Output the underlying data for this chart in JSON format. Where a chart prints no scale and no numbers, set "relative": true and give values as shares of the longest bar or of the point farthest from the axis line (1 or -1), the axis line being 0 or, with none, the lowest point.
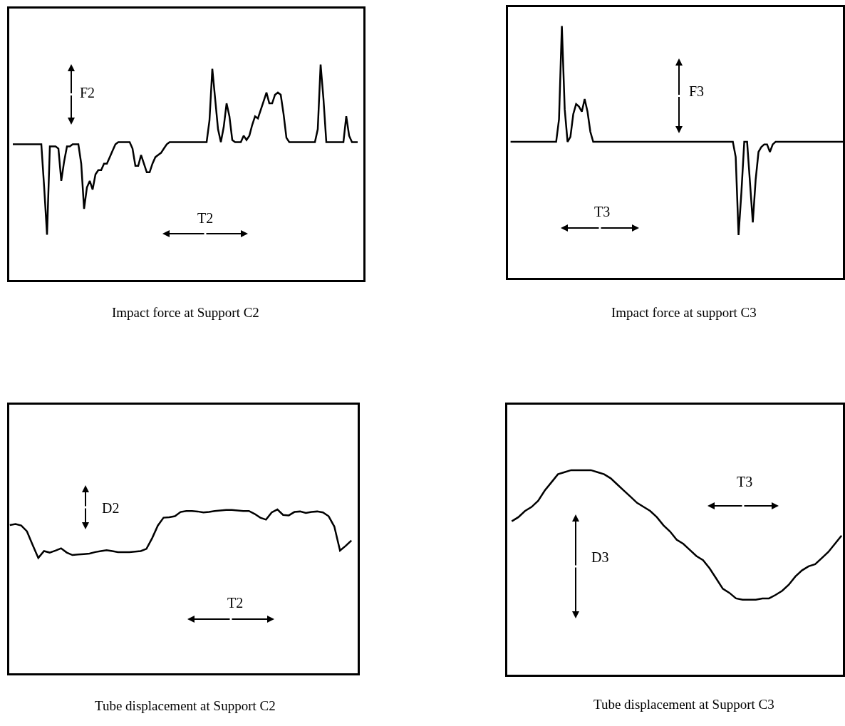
{
  "chart_data": [
    {
      "type": "line",
      "relative": true,
      "title": "Impact force at Support C2",
      "annotations": [
        "F2",
        "T2"
      ],
      "color": "#000000",
      "categories": [
        null,
        null,
        null,
        null,
        null,
        null,
        null,
        null,
        null,
        null,
        null,
        null,
        null,
        null,
        null,
        null,
        null,
        null,
        null,
        null,
        null,
        null,
        null,
        null,
        null,
        null,
        null,
        null,
        null,
        null,
        null,
        null,
        null,
        null,
        null,
        null,
        null,
        null,
        null,
        null,
        null,
        null,
        null,
        null,
        null,
        null,
        null,
        null,
        null,
        null,
        null,
        null,
        null,
        null,
        null,
        null,
        null,
        null,
        null,
        null,
        null,
        null,
        null,
        null,
        null,
        null,
        null,
        null,
        null,
        null,
        null,
        null,
        null,
        null,
        null,
        null,
        null,
        null,
        null,
        null,
        null,
        null,
        null,
        null,
        null,
        null,
        null,
        null,
        null,
        null,
        null,
        null,
        null,
        null,
        null,
        null,
        null,
        null,
        null,
        null,
        null,
        null,
        null,
        null,
        null,
        null,
        null,
        null,
        null,
        null,
        null,
        null,
        null,
        null,
        null,
        null,
        null,
        null,
        null,
        null,
        null,
        null
      ],
      "values": [
        0.63,
        0.63,
        0.63,
        0.63,
        0.63,
        0.63,
        0.63,
        0.63,
        0.63,
        0.63,
        0.63,
        0.43,
        0.21,
        0.62,
        0.62,
        0.62,
        0.61,
        0.46,
        0.55,
        0.62,
        0.62,
        0.63,
        0.63,
        0.63,
        0.54,
        0.33,
        0.43,
        0.46,
        0.42,
        0.49,
        0.51,
        0.51,
        0.54,
        0.54,
        0.57,
        0.6,
        0.63,
        0.64,
        0.64,
        0.64,
        0.64,
        0.64,
        0.61,
        0.53,
        0.53,
        0.58,
        0.54,
        0.5,
        0.5,
        0.54,
        0.57,
        0.58,
        0.59,
        0.61,
        0.63,
        0.64,
        0.64,
        0.64,
        0.64,
        0.64,
        0.64,
        0.64,
        0.64,
        0.64,
        0.64,
        0.64,
        0.64,
        0.64,
        0.64,
        0.74,
        0.98,
        0.84,
        0.7,
        0.64,
        0.71,
        0.82,
        0.76,
        0.65,
        0.64,
        0.64,
        0.64,
        0.67,
        0.65,
        0.67,
        0.72,
        0.76,
        0.75,
        0.79,
        0.83,
        0.87,
        0.82,
        0.82,
        0.86,
        0.87,
        0.86,
        0.77,
        0.66,
        0.64,
        0.64,
        0.64,
        0.64,
        0.64,
        0.64,
        0.64,
        0.64,
        0.64,
        0.64,
        0.7,
        1.0,
        0.84,
        0.64,
        0.64,
        0.64,
        0.64,
        0.64,
        0.64,
        0.64,
        0.76,
        0.67,
        0.64,
        0.64,
        0.64
      ]
    },
    {
      "type": "line",
      "relative": true,
      "title": "Impact force at support C3",
      "annotations": [
        "F3",
        "T3"
      ],
      "color": "#000000",
      "categories": [
        null,
        null,
        null,
        null,
        null,
        null,
        null,
        null,
        null,
        null,
        null,
        null,
        null,
        null,
        null,
        null,
        null,
        null,
        null,
        null,
        null,
        null,
        null,
        null,
        null,
        null,
        null,
        null,
        null,
        null,
        null,
        null,
        null,
        null,
        null,
        null,
        null,
        null,
        null,
        null,
        null,
        null,
        null,
        null,
        null,
        null,
        null,
        null,
        null,
        null,
        null,
        null,
        null,
        null,
        null,
        null,
        null,
        null,
        null,
        null,
        null,
        null,
        null,
        null,
        null,
        null,
        null,
        null,
        null,
        null,
        null,
        null,
        null,
        null,
        null,
        null,
        null,
        null,
        null,
        null,
        null,
        null,
        null,
        null,
        null,
        null,
        null,
        null,
        null,
        null,
        null,
        null,
        null,
        null,
        null,
        null,
        null,
        null,
        null,
        null,
        null,
        null,
        null,
        null,
        null,
        null,
        null,
        null,
        null,
        null,
        null,
        null,
        null,
        null,
        null,
        null,
        null,
        null
      ],
      "values": [
        0.54,
        0.54,
        0.54,
        0.54,
        0.54,
        0.54,
        0.54,
        0.54,
        0.54,
        0.54,
        0.54,
        0.54,
        0.54,
        0.54,
        0.54,
        0.54,
        0.54,
        0.63,
        1.0,
        0.67,
        0.54,
        0.56,
        0.65,
        0.69,
        0.68,
        0.66,
        0.71,
        0.66,
        0.58,
        0.54,
        0.54,
        0.54,
        0.54,
        0.54,
        0.54,
        0.54,
        0.54,
        0.54,
        0.54,
        0.54,
        0.54,
        0.54,
        0.54,
        0.54,
        0.54,
        0.54,
        0.54,
        0.54,
        0.54,
        0.54,
        0.54,
        0.54,
        0.54,
        0.54,
        0.54,
        0.54,
        0.54,
        0.54,
        0.54,
        0.54,
        0.54,
        0.54,
        0.54,
        0.54,
        0.54,
        0.54,
        0.54,
        0.54,
        0.54,
        0.54,
        0.54,
        0.54,
        0.54,
        0.54,
        0.54,
        0.54,
        0.54,
        0.54,
        0.54,
        0.48,
        0.17,
        0.34,
        0.54,
        0.54,
        0.38,
        0.22,
        0.39,
        0.5,
        0.52,
        0.53,
        0.53,
        0.5,
        0.53,
        0.54,
        0.54,
        0.54,
        0.54,
        0.54,
        0.54,
        0.54,
        0.54,
        0.54,
        0.54,
        0.54,
        0.54,
        0.54,
        0.54,
        0.54,
        0.54,
        0.54,
        0.54,
        0.54,
        0.54,
        0.54,
        0.54,
        0.54,
        0.54,
        0.54
      ]
    },
    {
      "type": "line",
      "relative": true,
      "title": "Tube displacement at Support C2",
      "annotations": [
        "D2",
        "T2"
      ],
      "color": "#000000",
      "categories": [
        null,
        null,
        null,
        null,
        null,
        null,
        null,
        null,
        null,
        null,
        null,
        null,
        null,
        null,
        null,
        null,
        null,
        null,
        null,
        null,
        null,
        null,
        null,
        null,
        null,
        null,
        null,
        null,
        null,
        null,
        null,
        null,
        null,
        null,
        null,
        null,
        null,
        null,
        null,
        null,
        null,
        null,
        null,
        null,
        null,
        null,
        null,
        null,
        null,
        null,
        null,
        null,
        null,
        null,
        null,
        null,
        null,
        null,
        null,
        null,
        null
      ],
      "values": [
        0.905,
        0.911,
        0.902,
        0.867,
        0.784,
        0.704,
        0.746,
        0.737,
        0.749,
        0.763,
        0.737,
        0.722,
        0.725,
        0.728,
        0.731,
        0.74,
        0.746,
        0.751,
        0.746,
        0.74,
        0.74,
        0.74,
        0.743,
        0.746,
        0.76,
        0.825,
        0.902,
        0.95,
        0.953,
        0.959,
        0.985,
        0.991,
        0.991,
        0.988,
        0.982,
        0.985,
        0.991,
        0.994,
        0.997,
        0.997,
        0.994,
        0.991,
        0.991,
        0.973,
        0.95,
        0.938,
        0.982,
        1.0,
        0.967,
        0.964,
        0.985,
        0.988,
        0.979,
        0.985,
        0.988,
        0.982,
        0.959,
        0.896,
        0.749,
        0.778,
        0.811
      ]
    },
    {
      "type": "line",
      "relative": true,
      "title": "Tube displacement at Support C3",
      "annotations": [
        "D3",
        "T3"
      ],
      "color": "#000000",
      "categories": [
        null,
        null,
        null,
        null,
        null,
        null,
        null,
        null,
        null,
        null,
        null,
        null,
        null,
        null,
        null,
        null,
        null,
        null,
        null,
        null,
        null,
        null,
        null,
        null,
        null,
        null,
        null,
        null,
        null,
        null,
        null,
        null,
        null,
        null,
        null,
        null,
        null,
        null,
        null,
        null,
        null,
        null,
        null,
        null,
        null,
        null,
        null,
        null,
        null,
        null,
        null
      ],
      "values": [
        0.75,
        0.77,
        0.8,
        0.82,
        0.85,
        0.9,
        0.94,
        0.98,
        0.99,
        1.0,
        1.0,
        1.0,
        1.0,
        0.99,
        0.98,
        0.96,
        0.93,
        0.9,
        0.87,
        0.84,
        0.82,
        0.8,
        0.77,
        0.73,
        0.7,
        0.66,
        0.64,
        0.61,
        0.58,
        0.56,
        0.52,
        0.47,
        0.42,
        0.4,
        0.373,
        0.367,
        0.367,
        0.367,
        0.373,
        0.373,
        0.39,
        0.41,
        0.44,
        0.48,
        0.51,
        0.53,
        0.54,
        0.57,
        0.6,
        0.64,
        0.68
      ]
    }
  ]
}
